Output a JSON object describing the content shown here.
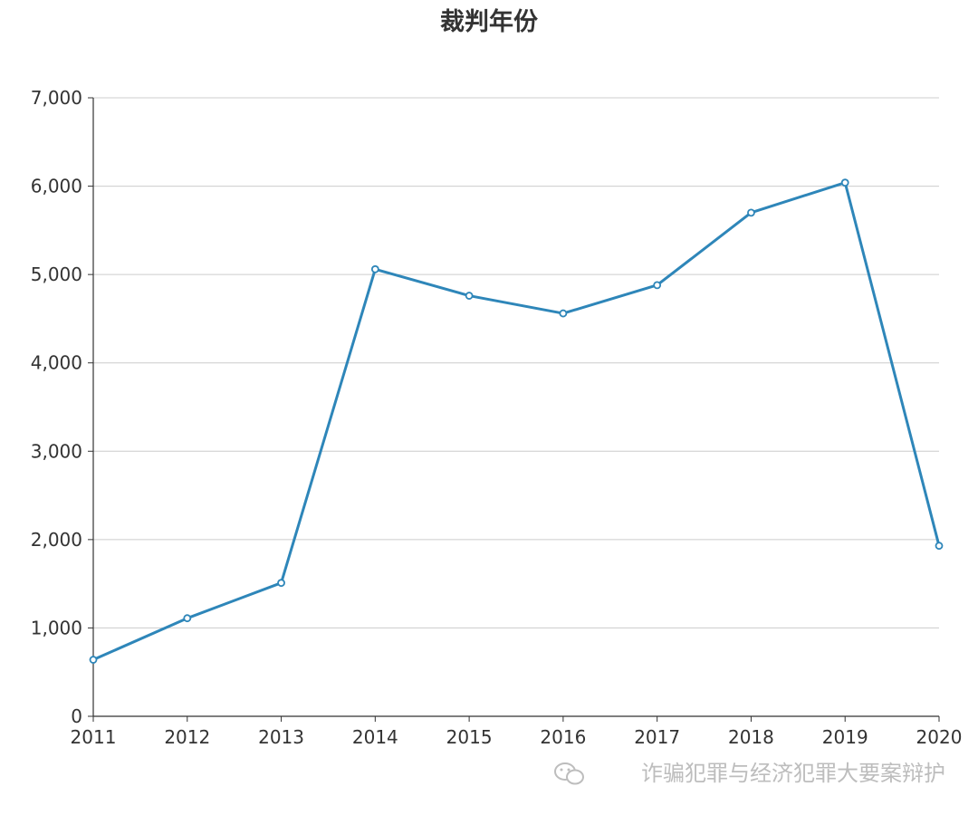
{
  "chart_data": {
    "type": "line",
    "title": "裁判年份",
    "xlabel": "",
    "ylabel": "",
    "categories": [
      "2011",
      "2012",
      "2013",
      "2014",
      "2015",
      "2016",
      "2017",
      "2018",
      "2019",
      "2020"
    ],
    "series": [
      {
        "values": [
          640,
          1110,
          1510,
          5060,
          4760,
          4560,
          4880,
          5700,
          6040,
          1930
        ]
      }
    ],
    "ylim": [
      0,
      7000
    ],
    "yticks": [
      "0",
      "1,000",
      "2,000",
      "3,000",
      "4,000",
      "5,000",
      "6,000",
      "7,000"
    ],
    "grid": true,
    "colors": {
      "line": "#2e86b9",
      "grid": "#cccccc",
      "axis": "#333333"
    }
  },
  "watermark": {
    "icon": "wechat-icon",
    "text": "诈骗犯罪与经济犯罪大要案辩护"
  }
}
